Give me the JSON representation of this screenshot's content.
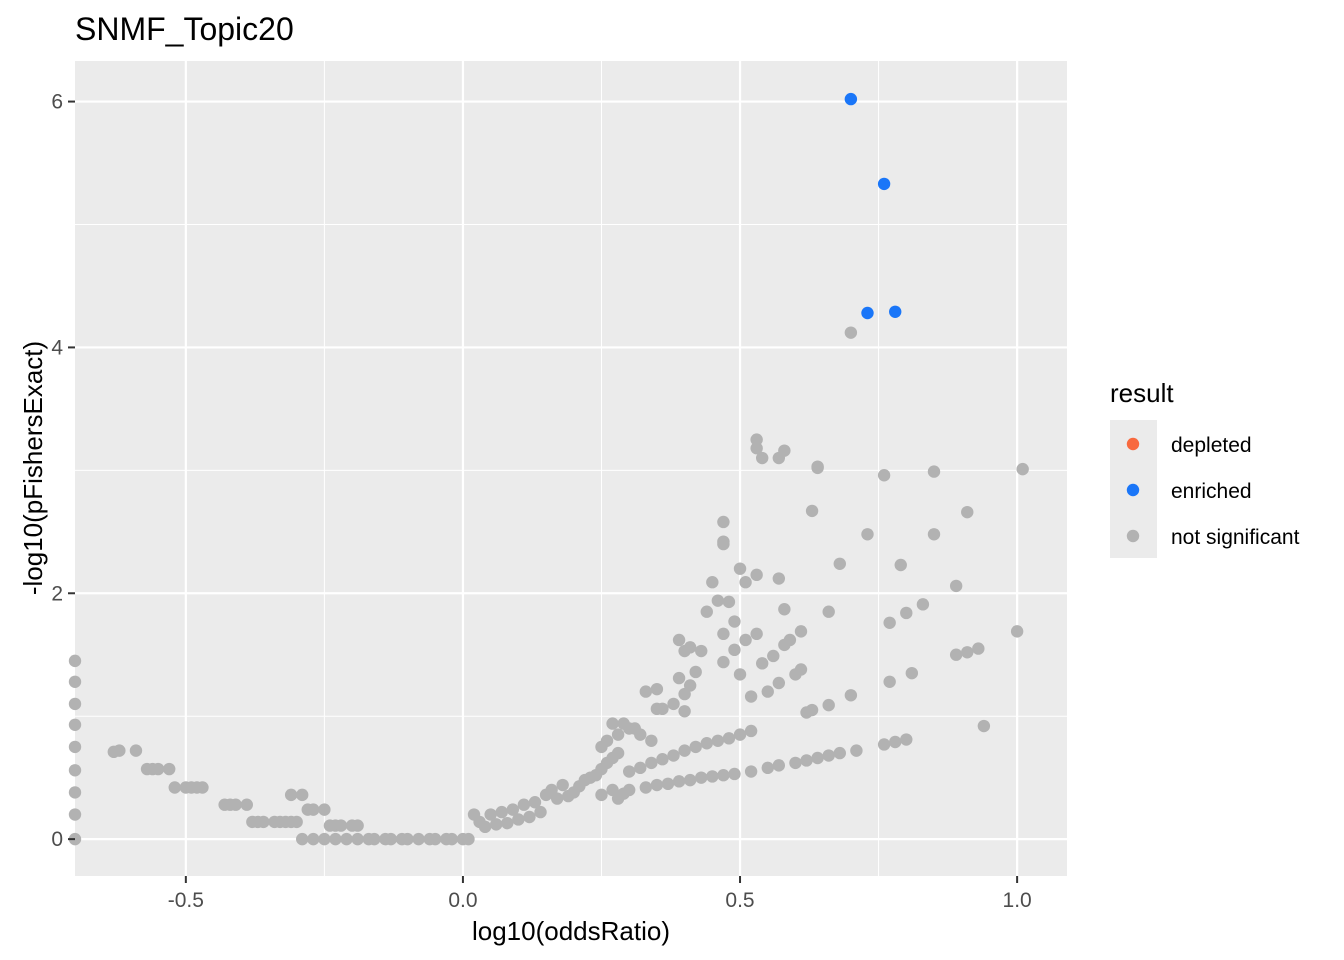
{
  "chart_data": {
    "type": "scatter",
    "title": "SNMF_Topic20",
    "xlabel": "log10(oddsRatio)",
    "ylabel": "-log10(pFishersExact)",
    "xlim": [
      -0.7,
      1.09
    ],
    "ylim": [
      -0.3,
      6.33
    ],
    "x_ticks": [
      -0.5,
      0.0,
      0.5,
      1.0
    ],
    "x_tick_labels": [
      "-0.5",
      "0.0",
      "0.5",
      "1.0"
    ],
    "y_ticks": [
      0,
      2,
      4,
      6
    ],
    "y_tick_labels": [
      "0",
      "2",
      "4",
      "6"
    ],
    "grid": true,
    "legend": {
      "title": "result",
      "placement": "right",
      "entries": [
        {
          "label": "depleted",
          "color": "#F8693E"
        },
        {
          "label": "enriched",
          "color": "#1A76F8"
        },
        {
          "label": "not significant",
          "color": "#B2B2B2"
        }
      ]
    },
    "series": [
      {
        "name": "enriched",
        "color": "#1A76F8",
        "points": [
          [
            0.7,
            6.02
          ],
          [
            0.76,
            5.33
          ],
          [
            0.73,
            4.28
          ],
          [
            0.78,
            4.29
          ]
        ]
      },
      {
        "name": "not significant",
        "color": "#B2B2B2",
        "points": [
          [
            -0.7,
            1.45
          ],
          [
            -0.7,
            1.28
          ],
          [
            -0.7,
            1.1
          ],
          [
            -0.7,
            0.93
          ],
          [
            -0.7,
            0.75
          ],
          [
            -0.7,
            0.56
          ],
          [
            -0.7,
            0.38
          ],
          [
            -0.7,
            0.2
          ],
          [
            -0.7,
            0.0
          ],
          [
            -0.63,
            0.71
          ],
          [
            -0.62,
            0.72
          ],
          [
            -0.59,
            0.72
          ],
          [
            -0.57,
            0.57
          ],
          [
            -0.56,
            0.57
          ],
          [
            -0.55,
            0.57
          ],
          [
            -0.53,
            0.57
          ],
          [
            -0.52,
            0.42
          ],
          [
            -0.5,
            0.42
          ],
          [
            -0.49,
            0.42
          ],
          [
            -0.48,
            0.42
          ],
          [
            -0.47,
            0.42
          ],
          [
            -0.43,
            0.28
          ],
          [
            -0.42,
            0.28
          ],
          [
            -0.41,
            0.28
          ],
          [
            -0.39,
            0.28
          ],
          [
            -0.38,
            0.14
          ],
          [
            -0.37,
            0.14
          ],
          [
            -0.36,
            0.14
          ],
          [
            -0.34,
            0.14
          ],
          [
            -0.33,
            0.14
          ],
          [
            -0.32,
            0.14
          ],
          [
            -0.31,
            0.14
          ],
          [
            -0.3,
            0.14
          ],
          [
            -0.31,
            0.36
          ],
          [
            -0.29,
            0.36
          ],
          [
            -0.28,
            0.24
          ],
          [
            -0.27,
            0.24
          ],
          [
            -0.25,
            0.24
          ],
          [
            -0.24,
            0.11
          ],
          [
            -0.23,
            0.11
          ],
          [
            -0.22,
            0.11
          ],
          [
            -0.2,
            0.11
          ],
          [
            -0.19,
            0.11
          ],
          [
            -0.29,
            0.0
          ],
          [
            -0.27,
            0.0
          ],
          [
            -0.25,
            0.0
          ],
          [
            -0.23,
            0.0
          ],
          [
            -0.21,
            0.0
          ],
          [
            -0.19,
            0.0
          ],
          [
            -0.17,
            0.0
          ],
          [
            -0.16,
            0.0
          ],
          [
            -0.14,
            0.0
          ],
          [
            -0.13,
            0.0
          ],
          [
            -0.11,
            0.0
          ],
          [
            -0.1,
            0.0
          ],
          [
            -0.08,
            0.0
          ],
          [
            -0.06,
            0.0
          ],
          [
            -0.05,
            0.0
          ],
          [
            -0.03,
            0.0
          ],
          [
            -0.02,
            0.0
          ],
          [
            0.0,
            0.0
          ],
          [
            0.01,
            0.0
          ],
          [
            0.02,
            0.2
          ],
          [
            0.03,
            0.14
          ],
          [
            0.04,
            0.1
          ],
          [
            0.05,
            0.2
          ],
          [
            0.06,
            0.12
          ],
          [
            0.07,
            0.22
          ],
          [
            0.08,
            0.13
          ],
          [
            0.09,
            0.24
          ],
          [
            0.1,
            0.16
          ],
          [
            0.11,
            0.28
          ],
          [
            0.12,
            0.18
          ],
          [
            0.13,
            0.3
          ],
          [
            0.14,
            0.22
          ],
          [
            0.15,
            0.36
          ],
          [
            0.16,
            0.4
          ],
          [
            0.17,
            0.33
          ],
          [
            0.18,
            0.44
          ],
          [
            0.19,
            0.35
          ],
          [
            0.2,
            0.38
          ],
          [
            0.21,
            0.43
          ],
          [
            0.22,
            0.48
          ],
          [
            0.23,
            0.5
          ],
          [
            0.24,
            0.52
          ],
          [
            0.25,
            0.57
          ],
          [
            0.25,
            0.36
          ],
          [
            0.27,
            0.4
          ],
          [
            0.28,
            0.33
          ],
          [
            0.29,
            0.37
          ],
          [
            0.3,
            0.4
          ],
          [
            0.26,
            0.62
          ],
          [
            0.27,
            0.66
          ],
          [
            0.28,
            0.7
          ],
          [
            0.26,
            0.8
          ],
          [
            0.28,
            0.85
          ],
          [
            0.3,
            0.9
          ],
          [
            0.32,
            0.85
          ],
          [
            0.34,
            0.8
          ],
          [
            0.27,
            0.94
          ],
          [
            0.29,
            0.94
          ],
          [
            0.31,
            0.9
          ],
          [
            0.25,
            0.75
          ],
          [
            0.33,
            1.2
          ],
          [
            0.35,
            1.22
          ],
          [
            0.35,
            1.06
          ],
          [
            0.36,
            1.06
          ],
          [
            0.38,
            1.1
          ],
          [
            0.39,
            1.31
          ],
          [
            0.4,
            1.18
          ],
          [
            0.4,
            1.04
          ],
          [
            0.41,
            1.25
          ],
          [
            0.42,
            1.36
          ],
          [
            0.43,
            1.53
          ],
          [
            0.39,
            1.62
          ],
          [
            0.4,
            1.53
          ],
          [
            0.41,
            1.56
          ],
          [
            0.44,
            1.85
          ],
          [
            0.45,
            2.09
          ],
          [
            0.46,
            1.94
          ],
          [
            0.47,
            1.44
          ],
          [
            0.47,
            1.67
          ],
          [
            0.47,
            2.4
          ],
          [
            0.47,
            2.42
          ],
          [
            0.47,
            2.58
          ],
          [
            0.48,
            1.93
          ],
          [
            0.49,
            1.77
          ],
          [
            0.49,
            1.54
          ],
          [
            0.5,
            2.2
          ],
          [
            0.5,
            1.34
          ],
          [
            0.51,
            2.09
          ],
          [
            0.51,
            1.62
          ],
          [
            0.52,
            1.16
          ],
          [
            0.53,
            1.67
          ],
          [
            0.53,
            2.15
          ],
          [
            0.53,
            3.18
          ],
          [
            0.53,
            3.25
          ],
          [
            0.54,
            3.1
          ],
          [
            0.54,
            1.43
          ],
          [
            0.55,
            1.2
          ],
          [
            0.56,
            1.49
          ],
          [
            0.57,
            3.1
          ],
          [
            0.57,
            2.12
          ],
          [
            0.58,
            3.16
          ],
          [
            0.58,
            1.87
          ],
          [
            0.58,
            1.58
          ],
          [
            0.59,
            1.62
          ],
          [
            0.57,
            1.27
          ],
          [
            0.6,
            1.34
          ],
          [
            0.61,
            1.69
          ],
          [
            0.61,
            1.38
          ],
          [
            0.62,
            1.03
          ],
          [
            0.63,
            1.05
          ],
          [
            0.63,
            2.67
          ],
          [
            0.64,
            3.02
          ],
          [
            0.64,
            3.03
          ],
          [
            0.66,
            1.85
          ],
          [
            0.66,
            1.09
          ],
          [
            0.68,
            2.24
          ],
          [
            0.7,
            1.17
          ],
          [
            0.7,
            4.12
          ],
          [
            0.76,
            2.96
          ],
          [
            0.77,
            1.76
          ],
          [
            0.77,
            1.28
          ],
          [
            0.79,
            2.23
          ],
          [
            0.8,
            1.84
          ],
          [
            0.81,
            1.35
          ],
          [
            0.83,
            1.91
          ],
          [
            0.85,
            2.48
          ],
          [
            0.85,
            2.99
          ],
          [
            0.89,
            2.06
          ],
          [
            0.89,
            1.5
          ],
          [
            0.91,
            1.52
          ],
          [
            0.91,
            2.66
          ],
          [
            0.93,
            1.55
          ],
          [
            0.94,
            0.92
          ],
          [
            1.0,
            1.69
          ],
          [
            1.01,
            3.01
          ],
          [
            0.73,
            2.48
          ],
          [
            0.3,
            0.55
          ],
          [
            0.32,
            0.58
          ],
          [
            0.34,
            0.62
          ],
          [
            0.36,
            0.65
          ],
          [
            0.38,
            0.68
          ],
          [
            0.4,
            0.72
          ],
          [
            0.42,
            0.75
          ],
          [
            0.44,
            0.78
          ],
          [
            0.46,
            0.8
          ],
          [
            0.48,
            0.82
          ],
          [
            0.5,
            0.85
          ],
          [
            0.52,
            0.88
          ],
          [
            0.33,
            0.42
          ],
          [
            0.35,
            0.44
          ],
          [
            0.37,
            0.45
          ],
          [
            0.39,
            0.47
          ],
          [
            0.41,
            0.48
          ],
          [
            0.43,
            0.5
          ],
          [
            0.45,
            0.51
          ],
          [
            0.47,
            0.52
          ],
          [
            0.49,
            0.53
          ],
          [
            0.52,
            0.55
          ],
          [
            0.55,
            0.58
          ],
          [
            0.57,
            0.6
          ],
          [
            0.6,
            0.62
          ],
          [
            0.62,
            0.64
          ],
          [
            0.64,
            0.66
          ],
          [
            0.66,
            0.68
          ],
          [
            0.68,
            0.7
          ],
          [
            0.71,
            0.72
          ],
          [
            0.76,
            0.77
          ],
          [
            0.78,
            0.79
          ],
          [
            0.8,
            0.81
          ]
        ]
      }
    ]
  }
}
